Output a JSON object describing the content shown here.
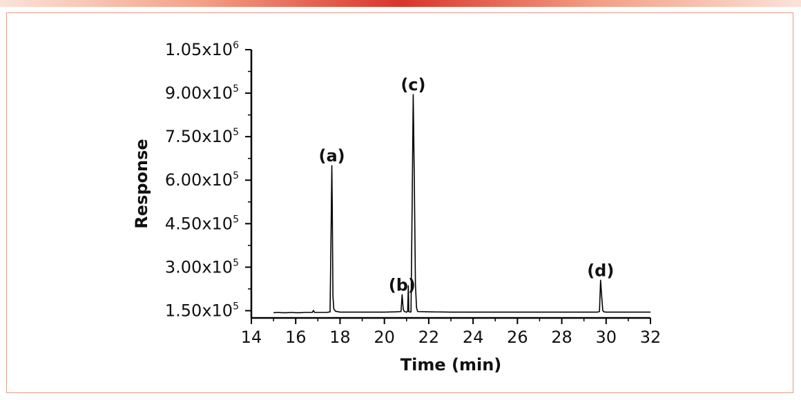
{
  "chart_data": {
    "type": "line",
    "xlabel": "Time (min)",
    "ylabel": "Response",
    "xlim": [
      14,
      32
    ],
    "ylim": [
      125000,
      1050000
    ],
    "x_ticks": [
      14,
      16,
      18,
      20,
      22,
      24,
      26,
      28,
      30,
      32
    ],
    "x_tick_labels": [
      "14",
      "16",
      "18",
      "20",
      "22",
      "24",
      "26",
      "28",
      "30",
      "32"
    ],
    "y_ticks": [
      150000,
      300000,
      450000,
      600000,
      750000,
      900000,
      1050000
    ],
    "y_tick_labels": [
      {
        "mantissa": "1.50x10",
        "exponent": "5"
      },
      {
        "mantissa": "3.00x10",
        "exponent": "5"
      },
      {
        "mantissa": "4.50x10",
        "exponent": "5"
      },
      {
        "mantissa": "6.00x10",
        "exponent": "5"
      },
      {
        "mantissa": "7.50x10",
        "exponent": "5"
      },
      {
        "mantissa": "9.00x10",
        "exponent": "5"
      },
      {
        "mantissa": "1.05x10",
        "exponent": "6"
      }
    ],
    "series": [
      {
        "values_x": [
          15.0,
          15.2,
          15.4,
          15.6,
          15.8,
          16.0,
          16.2,
          16.4,
          16.6,
          16.75,
          16.8,
          16.85,
          17.0,
          17.2,
          17.4,
          17.55,
          17.6,
          17.63,
          17.65,
          17.68,
          17.72,
          17.8,
          18.0,
          18.5,
          19.0,
          19.5,
          20.0,
          20.5,
          20.75,
          20.8,
          20.85,
          20.9,
          21.0,
          21.05,
          21.08,
          21.1,
          21.13,
          21.17,
          21.2,
          21.25,
          21.3,
          21.35,
          21.4,
          21.45,
          21.5,
          22.0,
          23.0,
          24.0,
          25.0,
          26.0,
          27.0,
          28.0,
          29.0,
          29.6,
          29.7,
          29.75,
          29.8,
          29.85,
          29.9,
          30.0,
          31.0,
          32.0
        ],
        "values_y": [
          143000,
          144000,
          143000,
          143000,
          144000,
          143000,
          143000,
          144000,
          144000,
          144000,
          151000,
          144000,
          144000,
          144000,
          144000,
          146000,
          450000,
          650000,
          500000,
          200000,
          155000,
          148000,
          145000,
          145000,
          145000,
          145000,
          145000,
          146000,
          147000,
          205000,
          155000,
          147000,
          145000,
          148000,
          236000,
          147000,
          146000,
          145000,
          146000,
          500000,
          895000,
          600000,
          240000,
          160000,
          147000,
          146000,
          145000,
          145000,
          145000,
          145000,
          145000,
          145000,
          145000,
          145000,
          147000,
          255000,
          200000,
          150000,
          146000,
          145000,
          145000,
          145000
        ]
      }
    ],
    "peaks": [
      {
        "label": "(a)",
        "x": 17.63,
        "y": 650000
      },
      {
        "label": "(b)",
        "x": 20.8,
        "y": 205000
      },
      {
        "label": "(c)",
        "x": 21.3,
        "y": 895000
      },
      {
        "label": "(d)",
        "x": 29.75,
        "y": 255000
      }
    ]
  }
}
